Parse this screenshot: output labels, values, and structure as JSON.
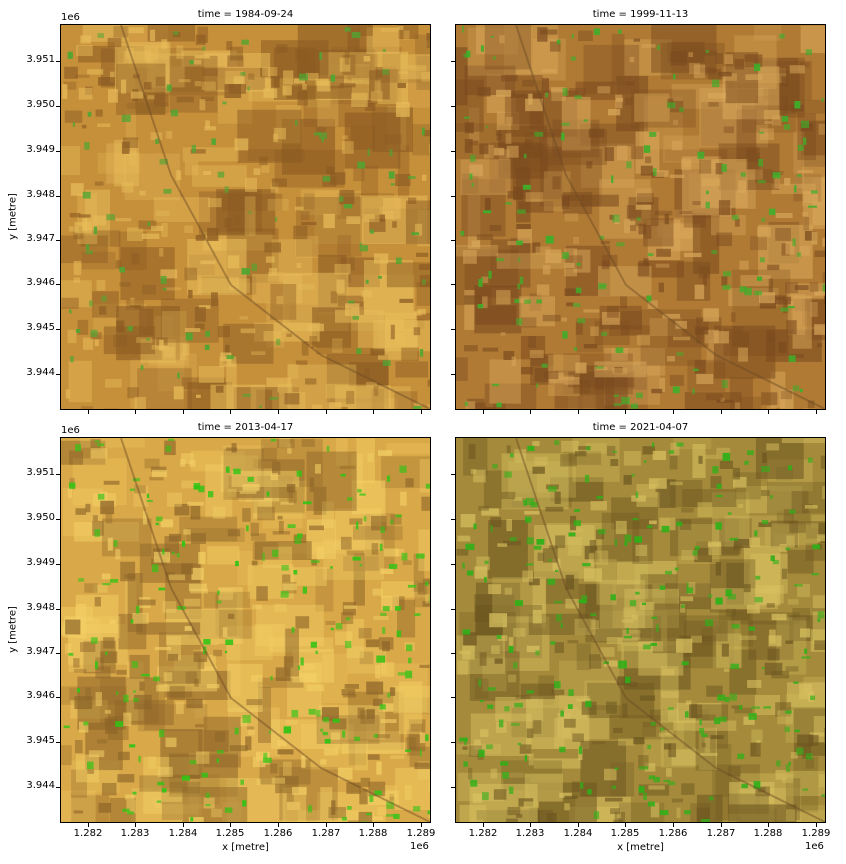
{
  "figure": {
    "panels": [
      {
        "title": "time = 1984-09-24",
        "base": "#c68f3a",
        "light": "#e8bd5a",
        "dark": "#8a5a22",
        "veg": "#4fa632",
        "vegCount": 90
      },
      {
        "title": "time = 1999-11-13",
        "base": "#b07a34",
        "light": "#d9a85a",
        "dark": "#7a4a1e",
        "veg": "#3fae2a",
        "vegCount": 130
      },
      {
        "title": "time = 2013-04-17",
        "base": "#d9a848",
        "light": "#f4d066",
        "dark": "#8c6428",
        "veg": "#31c414",
        "vegCount": 170
      },
      {
        "title": "time = 2021-04-07",
        "base": "#a48a3a",
        "light": "#d8c060",
        "dark": "#6c5620",
        "veg": "#2fb018",
        "vegCount": 200
      }
    ],
    "x_axis": {
      "label": "x [metre]",
      "offset": "1e6",
      "ticks": [
        "1.282",
        "1.283",
        "1.284",
        "1.285",
        "1.286",
        "1.287",
        "1.288",
        "1.289"
      ]
    },
    "y_axis": {
      "label": "y [metre]",
      "offset": "1e6",
      "ticks": [
        "3.951",
        "3.950",
        "3.949",
        "3.948",
        "3.947",
        "3.946",
        "3.945",
        "3.944"
      ]
    }
  }
}
